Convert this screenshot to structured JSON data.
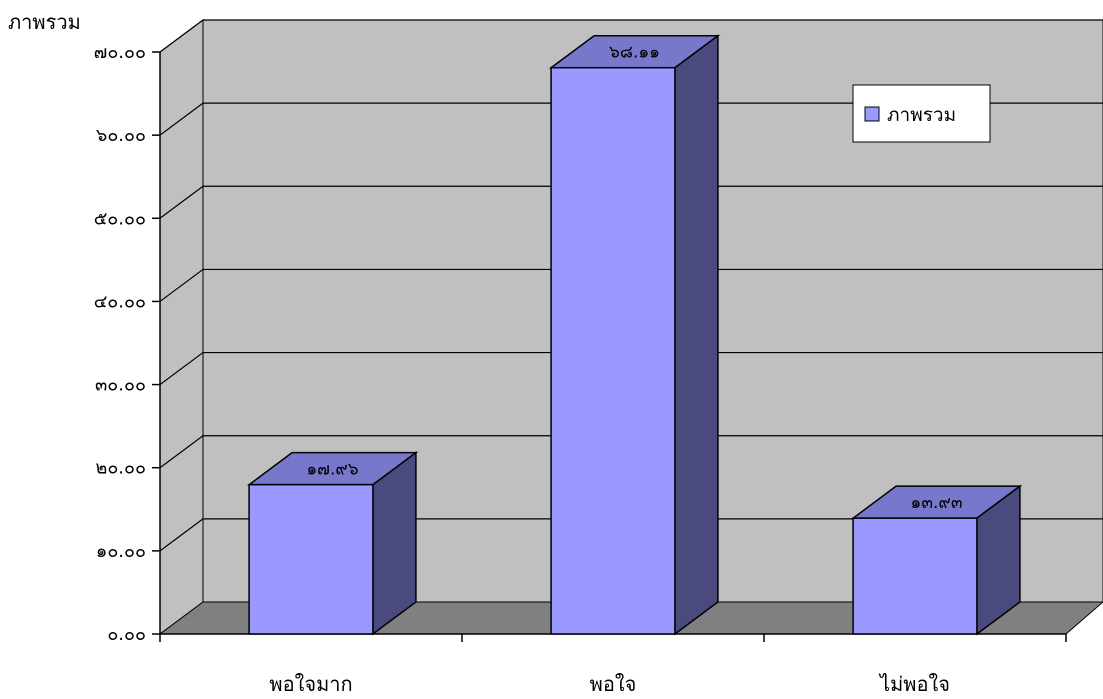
{
  "chart_data": {
    "type": "bar",
    "title": "ภาพรวม",
    "xlabel": "",
    "ylabel": "",
    "categories": [
      "พอใจมาก",
      "พอใจ",
      "ไม่พอใจ"
    ],
    "series": [
      {
        "name": "ภาพรวม",
        "values": [
          17.96,
          68.11,
          13.93
        ],
        "labels": [
          "๑๗.๙๖",
          "๖๘.๑๑",
          "๑๓.๙๓"
        ]
      }
    ],
    "ylim": [
      0,
      70
    ],
    "yticks": [
      0,
      10,
      20,
      30,
      40,
      50,
      60,
      70
    ],
    "ytick_labels": [
      "๐.๐๐",
      "๑๐.๐๐",
      "๒๐.๐๐",
      "๓๐.๐๐",
      "๔๐.๐๐",
      "๕๐.๐๐",
      "๖๐.๐๐",
      "๗๐.๐๐"
    ],
    "grid": true,
    "legend": "top-right",
    "style": "3d",
    "colors": {
      "bar_front": "#9999ff",
      "bar_top": "#7777cc",
      "bar_side": "#4a4a7e",
      "wall": "#c0c0c0",
      "floor": "#808080"
    }
  }
}
